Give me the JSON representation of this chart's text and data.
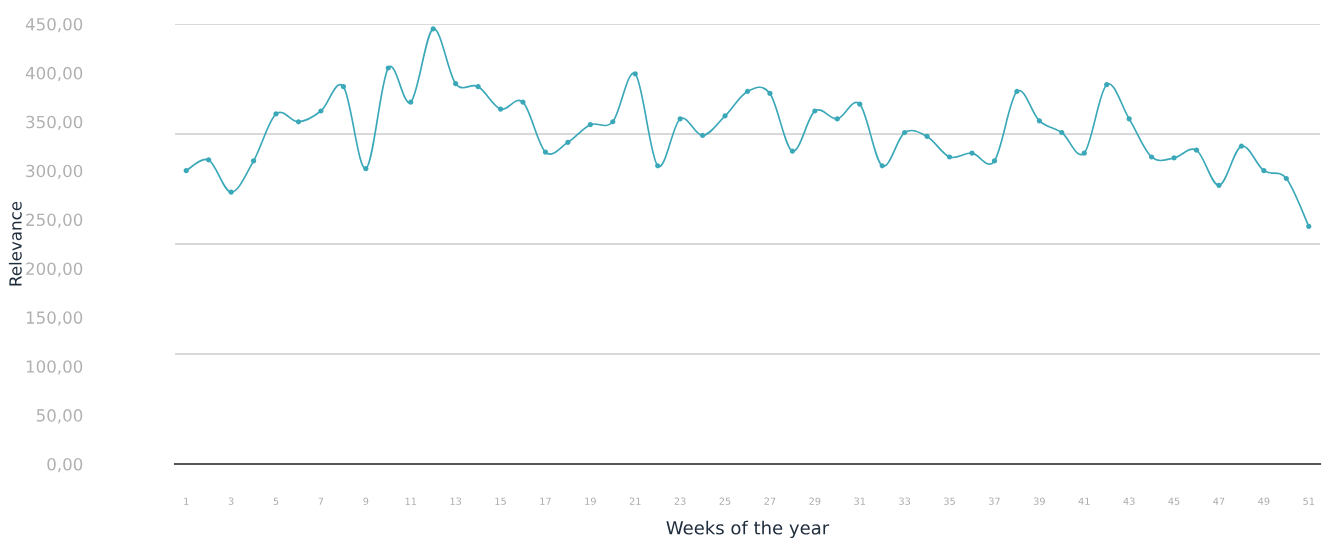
{
  "chart_data": {
    "type": "line",
    "xlabel": "Weeks of the year",
    "ylabel": "Relevance",
    "categories": [
      "1",
      null,
      "3",
      null,
      "5",
      null,
      "7",
      null,
      "9",
      null,
      "11",
      null,
      "13",
      null,
      "15",
      null,
      "17",
      null,
      "19",
      null,
      "21",
      null,
      "23",
      null,
      "25",
      null,
      "27",
      null,
      "29",
      null,
      "31",
      null,
      "33",
      null,
      "35",
      null,
      "37",
      null,
      "39",
      null,
      "41",
      null,
      "43",
      null,
      "45",
      null,
      "47",
      null,
      "49",
      null,
      "51"
    ],
    "series": [
      {
        "color": "#3aa8b8",
        "values": [
          300,
          311,
          278,
          310,
          358,
          350,
          361,
          386,
          302,
          405,
          370,
          445,
          389,
          386,
          363,
          370,
          319,
          329,
          347,
          350,
          399,
          305,
          353,
          336,
          356,
          381,
          379,
          320,
          361,
          353,
          368,
          305,
          339,
          335,
          314,
          318,
          310,
          381,
          351,
          339,
          318,
          388,
          353,
          314,
          313,
          321,
          285,
          325,
          300,
          292,
          243
        ]
      }
    ],
    "ylim": [
      0,
      450
    ],
    "yticks": [
      {
        "value": 0,
        "label": "0,00"
      },
      {
        "value": 50,
        "label": "50,00"
      },
      {
        "value": 100,
        "label": "100,00"
      },
      {
        "value": 150,
        "label": "150,00"
      },
      {
        "value": 200,
        "label": "200,00"
      },
      {
        "value": 250,
        "label": "250,00"
      },
      {
        "value": 300,
        "label": "300,00"
      },
      {
        "value": 350,
        "label": "350,00"
      },
      {
        "value": 400,
        "label": "400,00"
      },
      {
        "value": 450,
        "label": "450,00"
      }
    ],
    "ref_lines": [
      {
        "axis": "y",
        "value": 112.5,
        "color": "#cccccc"
      },
      {
        "axis": "y",
        "value": 225,
        "color": "#cccccc"
      },
      {
        "axis": "y",
        "value": 337.5,
        "color": "#cccccc"
      },
      {
        "axis": "y",
        "value": 450,
        "color": "#cccccc"
      }
    ],
    "marker": "circle",
    "line_style": "solid",
    "grid": false
  }
}
